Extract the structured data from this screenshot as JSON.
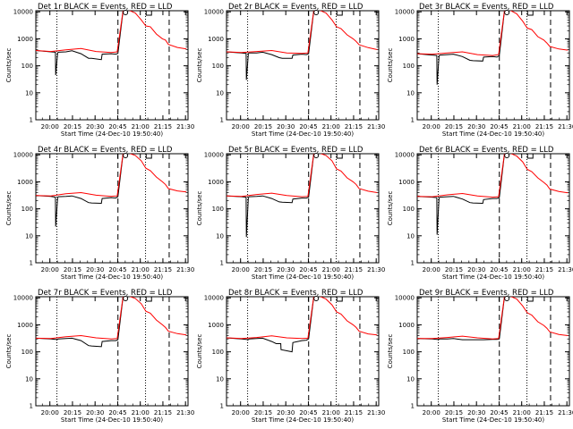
{
  "page": {
    "title_template": "Det {det} BLACK = Events, RED = LLD",
    "xlabel": "Start Time (24-Dec-10 19:50:40)",
    "ylabel": "Counts/sec"
  },
  "colors": {
    "events": "#000000",
    "lld": "#ff0000",
    "axis": "#000000"
  },
  "shared_axes": {
    "x_ticks": [
      "20:00",
      "20:15",
      "20:30",
      "20:45",
      "21:00",
      "21:15",
      "21:30"
    ],
    "x_tick_minutes": [
      9.33,
      24.33,
      39.33,
      54.33,
      69.33,
      84.33,
      99.33
    ],
    "xlim_minutes": [
      0,
      101
    ],
    "y_ticks": [
      "1",
      "10",
      "100",
      "1000",
      "10000"
    ],
    "y_tick_values": [
      1,
      10,
      100,
      1000,
      10000
    ],
    "ylim": [
      1,
      11000
    ],
    "yscale": "log",
    "dotted_marker_minutes": [
      14.0,
      72.8
    ],
    "dashed_marker_minutes": [
      54.5,
      88.5
    ],
    "peak_marker_minutes": 59.5,
    "box_marker_minutes": 75.0
  },
  "chart_data": [
    {
      "type": "line",
      "title": "Det 1r BLACK = Events, RED = LLD",
      "xlabel": "Start Time (24-Dec-10 19:50:40)",
      "ylabel": "Counts/sec",
      "series": [
        {
          "name": "Events",
          "x": [
            0,
            10,
            13,
            13.2,
            14.5,
            15,
            20,
            24,
            30,
            35,
            37,
            43.5,
            44,
            50,
            53,
            54.5,
            58,
            61
          ],
          "y": [
            370,
            330,
            320,
            45,
            300,
            320,
            330,
            360,
            280,
            190,
            190,
            170,
            270,
            280,
            270,
            290,
            12000,
            12000
          ]
        },
        {
          "name": "LLD",
          "x": [
            0,
            10,
            20,
            30,
            40,
            50,
            54,
            58,
            61,
            66,
            70,
            73,
            76,
            80,
            84,
            86,
            88,
            94,
            100
          ],
          "y": [
            370,
            340,
            390,
            440,
            340,
            310,
            330,
            12000,
            12000,
            9000,
            5000,
            3000,
            2800,
            1500,
            1000,
            900,
            620,
            480,
            420
          ]
        }
      ]
    },
    {
      "type": "line",
      "title": "Det 2r BLACK = Events, RED = LLD",
      "xlabel": "Start Time (24-Dec-10 19:50:40)",
      "ylabel": "Counts/sec",
      "series": [
        {
          "name": "Events",
          "x": [
            0,
            10,
            13,
            13.2,
            14.5,
            15,
            20,
            24,
            30,
            35,
            37,
            43.5,
            44,
            50,
            53,
            54.5,
            58,
            61
          ],
          "y": [
            330,
            300,
            290,
            30,
            280,
            300,
            300,
            320,
            260,
            200,
            190,
            190,
            250,
            270,
            260,
            280,
            12000,
            12000
          ]
        },
        {
          "name": "LLD",
          "x": [
            0,
            10,
            20,
            30,
            40,
            50,
            54,
            58,
            61,
            66,
            70,
            73,
            76,
            80,
            84,
            86,
            88,
            94,
            100
          ],
          "y": [
            330,
            310,
            340,
            370,
            300,
            290,
            300,
            12000,
            12000,
            9000,
            5000,
            2800,
            2400,
            1400,
            1000,
            800,
            600,
            470,
            400
          ]
        }
      ]
    },
    {
      "type": "line",
      "title": "Det 3r BLACK = Events, RED = LLD",
      "xlabel": "Start Time (24-Dec-10 19:50:40)",
      "ylabel": "Counts/sec",
      "series": [
        {
          "name": "Events",
          "x": [
            0,
            10,
            13,
            13.2,
            14.5,
            15,
            20,
            24,
            30,
            35,
            37,
            43.5,
            44,
            50,
            53,
            54.5,
            58,
            61
          ],
          "y": [
            280,
            250,
            240,
            20,
            230,
            250,
            260,
            270,
            220,
            160,
            155,
            150,
            210,
            220,
            210,
            240,
            12000,
            12000
          ]
        },
        {
          "name": "LLD",
          "x": [
            0,
            10,
            20,
            30,
            40,
            50,
            54,
            58,
            61,
            66,
            70,
            73,
            76,
            80,
            84,
            86,
            88,
            94,
            100
          ],
          "y": [
            280,
            270,
            300,
            330,
            260,
            240,
            260,
            12000,
            12000,
            8500,
            4500,
            2500,
            2200,
            1200,
            900,
            700,
            520,
            420,
            380
          ]
        }
      ]
    },
    {
      "type": "line",
      "title": "Det 4r BLACK = Events, RED = LLD",
      "xlabel": "Start Time (24-Dec-10 19:50:40)",
      "ylabel": "Counts/sec",
      "series": [
        {
          "name": "Events",
          "x": [
            0,
            10,
            13,
            13.2,
            14.5,
            15,
            20,
            24,
            30,
            35,
            37,
            43.5,
            44,
            50,
            53,
            54.5,
            58,
            61
          ],
          "y": [
            310,
            290,
            270,
            22,
            260,
            280,
            290,
            300,
            240,
            170,
            165,
            160,
            240,
            260,
            250,
            280,
            12000,
            12000
          ]
        },
        {
          "name": "LLD",
          "x": [
            0,
            10,
            20,
            30,
            40,
            50,
            54,
            58,
            61,
            66,
            70,
            73,
            76,
            80,
            84,
            86,
            88,
            94,
            100
          ],
          "y": [
            310,
            300,
            360,
            400,
            320,
            290,
            300,
            12000,
            12000,
            9500,
            6000,
            3200,
            2600,
            1500,
            1000,
            800,
            560,
            460,
            420
          ]
        }
      ]
    },
    {
      "type": "line",
      "title": "Det 5r BLACK = Events, RED = LLD",
      "xlabel": "Start Time (24-Dec-10 19:50:40)",
      "ylabel": "Counts/sec",
      "series": [
        {
          "name": "Events",
          "x": [
            0,
            10,
            13,
            13.2,
            14.5,
            15,
            20,
            24,
            30,
            35,
            37,
            43.5,
            44,
            50,
            53,
            54.5,
            58,
            61
          ],
          "y": [
            300,
            280,
            270,
            9,
            260,
            280,
            290,
            300,
            240,
            180,
            175,
            170,
            230,
            250,
            250,
            270,
            12000,
            12000
          ]
        },
        {
          "name": "LLD",
          "x": [
            0,
            10,
            20,
            30,
            40,
            50,
            54,
            58,
            61,
            66,
            70,
            73,
            76,
            80,
            84,
            86,
            88,
            94,
            100
          ],
          "y": [
            300,
            290,
            340,
            380,
            310,
            280,
            290,
            12000,
            12000,
            9500,
            6000,
            3000,
            2500,
            1400,
            1000,
            800,
            560,
            450,
            400
          ]
        }
      ]
    },
    {
      "type": "line",
      "title": "Det 6r BLACK = Events, RED = LLD",
      "xlabel": "Start Time (24-Dec-10 19:50:40)",
      "ylabel": "Counts/sec",
      "series": [
        {
          "name": "Events",
          "x": [
            0,
            10,
            13,
            13.2,
            14.5,
            15,
            20,
            24,
            30,
            35,
            37,
            43.5,
            44,
            50,
            53,
            54.5,
            58,
            61
          ],
          "y": [
            290,
            270,
            260,
            11,
            250,
            270,
            280,
            290,
            230,
            170,
            165,
            160,
            220,
            240,
            240,
            260,
            12000,
            12000
          ]
        },
        {
          "name": "LLD",
          "x": [
            0,
            10,
            20,
            30,
            40,
            50,
            54,
            58,
            61,
            66,
            70,
            73,
            76,
            80,
            84,
            86,
            88,
            94,
            100
          ],
          "y": [
            290,
            280,
            330,
            370,
            300,
            270,
            280,
            12000,
            12000,
            9000,
            5500,
            2900,
            2400,
            1400,
            950,
            760,
            540,
            440,
            390
          ]
        }
      ]
    },
    {
      "type": "line",
      "title": "Det 7r BLACK = Events, RED = LLD",
      "xlabel": "Start Time (24-Dec-10 19:50:40)",
      "ylabel": "Counts/sec",
      "series": [
        {
          "name": "Events",
          "x": [
            0,
            10,
            13,
            13.2,
            14.5,
            15,
            20,
            24,
            30,
            35,
            37,
            43.5,
            44,
            50,
            53,
            54.5,
            58,
            61
          ],
          "y": [
            320,
            300,
            290,
            290,
            290,
            300,
            310,
            320,
            260,
            170,
            165,
            155,
            240,
            260,
            260,
            280,
            12000,
            12000
          ]
        },
        {
          "name": "LLD",
          "x": [
            0,
            10,
            20,
            30,
            40,
            50,
            54,
            58,
            61,
            66,
            70,
            73,
            76,
            80,
            84,
            86,
            88,
            94,
            100
          ],
          "y": [
            320,
            310,
            360,
            400,
            330,
            300,
            310,
            12000,
            12000,
            9500,
            6000,
            3200,
            2700,
            1500,
            1000,
            800,
            580,
            470,
            420
          ]
        }
      ]
    },
    {
      "type": "line",
      "title": "Det 8r BLACK = Events, RED = LLD",
      "xlabel": "Start Time (24-Dec-10 19:50:40)",
      "ylabel": "Counts/sec",
      "series": [
        {
          "name": "Events",
          "x": [
            0,
            10,
            13,
            14.5,
            15,
            20,
            24,
            30,
            33,
            36,
            36.2,
            43.5,
            44,
            50,
            53,
            54.5,
            58,
            61
          ],
          "y": [
            330,
            300,
            290,
            280,
            300,
            310,
            320,
            240,
            200,
            200,
            120,
            100,
            220,
            260,
            270,
            300,
            12000,
            12000
          ]
        },
        {
          "name": "LLD",
          "x": [
            0,
            10,
            20,
            30,
            40,
            50,
            54,
            58,
            61,
            66,
            70,
            73,
            76,
            80,
            84,
            86,
            88,
            94,
            100
          ],
          "y": [
            330,
            310,
            340,
            390,
            330,
            310,
            320,
            12000,
            12000,
            9000,
            5500,
            3000,
            2500,
            1400,
            1000,
            800,
            580,
            460,
            420
          ]
        }
      ]
    },
    {
      "type": "line",
      "title": "Det 9r BLACK = Events, RED = LLD",
      "xlabel": "Start Time (24-Dec-10 19:50:40)",
      "ylabel": "Counts/sec",
      "series": [
        {
          "name": "Events",
          "x": [
            0,
            10,
            13,
            14.5,
            15,
            20,
            24,
            30,
            35,
            37,
            43.5,
            44,
            50,
            53,
            54.5,
            58,
            61
          ],
          "y": [
            310,
            300,
            290,
            290,
            300,
            300,
            310,
            280,
            280,
            280,
            280,
            280,
            290,
            290,
            300,
            12000,
            12000
          ]
        },
        {
          "name": "LLD",
          "x": [
            0,
            10,
            20,
            30,
            40,
            50,
            54,
            58,
            61,
            66,
            70,
            73,
            76,
            80,
            84,
            86,
            88,
            94,
            100
          ],
          "y": [
            310,
            310,
            340,
            380,
            330,
            300,
            310,
            12000,
            12000,
            9000,
            5000,
            2800,
            2300,
            1300,
            950,
            750,
            550,
            440,
            400
          ]
        }
      ]
    }
  ]
}
